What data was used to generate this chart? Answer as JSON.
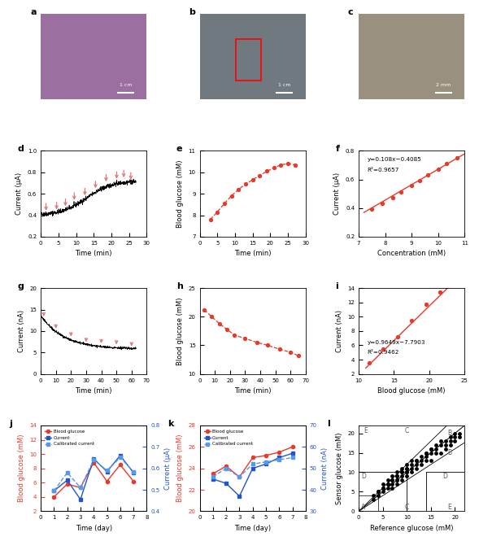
{
  "panel_d": {
    "xlabel": "Time (min)",
    "ylabel": "Current (μA)",
    "xlim": [
      0,
      30
    ],
    "ylim": [
      0.2,
      1.0
    ],
    "yticks": [
      0.2,
      0.4,
      0.6,
      0.8,
      1.0
    ],
    "xticks": [
      0,
      5,
      10,
      15,
      20,
      25,
      30
    ],
    "arrow_times": [
      1.5,
      4.5,
      7.0,
      9.5,
      12.5,
      15.5,
      18.5,
      21.5,
      23.5,
      25.5
    ]
  },
  "panel_e": {
    "xlabel": "Time (min)",
    "ylabel": "Blood glucose (mM)",
    "xlim": [
      0,
      30
    ],
    "ylim": [
      7,
      11
    ],
    "yticks": [
      7,
      8,
      9,
      10,
      11
    ],
    "xticks": [
      0,
      5,
      10,
      15,
      20,
      25,
      30
    ],
    "x": [
      3,
      5,
      7,
      9,
      11,
      13,
      15,
      17,
      19,
      21,
      23,
      25,
      27
    ],
    "y": [
      7.8,
      8.15,
      8.55,
      8.9,
      9.2,
      9.45,
      9.65,
      9.85,
      10.05,
      10.2,
      10.35,
      10.4,
      10.35
    ]
  },
  "panel_f": {
    "xlabel": "Concentration (mM)",
    "ylabel": "Current (μA)",
    "xlim": [
      7,
      11
    ],
    "ylim": [
      0.2,
      0.8
    ],
    "yticks": [
      0.2,
      0.4,
      0.6,
      0.8
    ],
    "xticks": [
      7,
      8,
      9,
      10,
      11
    ],
    "x": [
      7.5,
      7.9,
      8.3,
      8.6,
      9.0,
      9.3,
      9.6,
      10.0,
      10.3,
      10.7
    ],
    "y": [
      0.39,
      0.43,
      0.47,
      0.51,
      0.56,
      0.59,
      0.63,
      0.67,
      0.71,
      0.75
    ],
    "eq": "y=0.108x−0.4085",
    "r2": "R²=0.9657",
    "fit_slope": 0.108,
    "fit_intercept": -0.4085,
    "fit_x": [
      7.2,
      11.0
    ]
  },
  "panel_g": {
    "xlabel": "Time (min)",
    "ylabel": "Current (nA)",
    "xlim": [
      0,
      70
    ],
    "ylim": [
      0,
      20
    ],
    "yticks": [
      0,
      5,
      10,
      15,
      20
    ],
    "xticks": [
      0,
      10,
      20,
      30,
      40,
      50,
      60,
      70
    ],
    "arrow_times": [
      2,
      10,
      20,
      30,
      40,
      50,
      60
    ]
  },
  "panel_h": {
    "xlabel": "Time (min)",
    "ylabel": "Blood glucose (mM)",
    "xlim": [
      0,
      70
    ],
    "ylim": [
      10,
      25
    ],
    "yticks": [
      10,
      15,
      20,
      25
    ],
    "xticks": [
      0,
      10,
      20,
      30,
      40,
      50,
      60,
      70
    ],
    "x": [
      3,
      8,
      13,
      18,
      23,
      30,
      38,
      45,
      53,
      60,
      65
    ],
    "y": [
      21.2,
      20.0,
      18.8,
      17.8,
      16.8,
      16.2,
      15.5,
      15.0,
      14.3,
      13.8,
      13.2
    ]
  },
  "panel_i": {
    "xlabel": "Blood glucose (mM)",
    "ylabel": "Current (nA)",
    "xlim": [
      10,
      25
    ],
    "ylim": [
      2,
      14
    ],
    "yticks": [
      2,
      4,
      6,
      8,
      10,
      12,
      14
    ],
    "xticks": [
      10,
      15,
      20,
      25
    ],
    "x": [
      11.5,
      13.5,
      15.5,
      17.5,
      19.5,
      21.5
    ],
    "y": [
      3.5,
      5.5,
      7.2,
      9.5,
      11.8,
      13.5
    ],
    "eq": "y=0.9649x−7.7903",
    "r2": "R²=0.9462",
    "fit_slope": 0.9649,
    "fit_intercept": -7.7903,
    "fit_x": [
      11.0,
      23.5
    ]
  },
  "panel_j": {
    "xlabel": "Time (day)",
    "ylabel_left": "Blood glucose (mM)",
    "ylabel_right": "Current (μA)",
    "xlim": [
      0,
      8
    ],
    "ylim_left": [
      2,
      14
    ],
    "ylim_right": [
      0.4,
      0.8
    ],
    "xticks": [
      0,
      1,
      2,
      3,
      4,
      5,
      6,
      7,
      8
    ],
    "yticks_left": [
      2,
      4,
      6,
      8,
      10,
      12,
      14
    ],
    "yticks_right": [
      0.4,
      0.5,
      0.6,
      0.7,
      0.8
    ],
    "blood_glucose_x": [
      1,
      2,
      3,
      4,
      5,
      6,
      7
    ],
    "blood_glucose_y": [
      4.0,
      5.8,
      5.3,
      8.8,
      6.2,
      8.5,
      6.2
    ],
    "current_x": [
      1,
      2,
      3,
      4,
      5,
      6,
      7
    ],
    "current_y": [
      0.495,
      0.545,
      0.455,
      0.645,
      0.585,
      0.66,
      0.58
    ],
    "calibrated_x": [
      1,
      2,
      3,
      4,
      5,
      6,
      7
    ],
    "calibrated_y": [
      0.495,
      0.58,
      0.51,
      0.64,
      0.59,
      0.65,
      0.585
    ]
  },
  "panel_k": {
    "xlabel": "Time (day)",
    "ylabel_left": "Blood glucose (mM)",
    "ylabel_right": "Current (nA)",
    "xlim": [
      0,
      8
    ],
    "ylim_left": [
      20,
      28
    ],
    "ylim_right": [
      30,
      70
    ],
    "xticks": [
      0,
      1,
      2,
      3,
      4,
      5,
      6,
      7,
      8
    ],
    "yticks_left": [
      20,
      22,
      24,
      26,
      28
    ],
    "yticks_right": [
      30,
      40,
      50,
      60,
      70
    ],
    "blood_glucose_x": [
      1,
      2,
      3,
      4,
      5,
      6,
      7
    ],
    "blood_glucose_y": [
      23.5,
      24.2,
      23.2,
      25.0,
      25.2,
      25.5,
      26.0
    ],
    "current_x": [
      1,
      2,
      3,
      4,
      5,
      6,
      7
    ],
    "current_y": [
      45,
      43,
      37,
      50,
      52,
      55,
      57
    ],
    "calibrated_x": [
      1,
      2,
      3,
      4,
      5,
      6,
      7
    ],
    "calibrated_y": [
      46,
      50,
      46,
      52,
      53,
      54,
      55
    ]
  },
  "panel_l": {
    "xlabel": "Reference glucose (mM)",
    "ylabel": "Sensor glucose (mM)",
    "xlim": [
      0,
      22
    ],
    "ylim": [
      0,
      22
    ],
    "xticks": [
      0,
      5,
      10,
      15,
      20
    ],
    "yticks": [
      0,
      5,
      10,
      15,
      20
    ],
    "scatter_x": [
      3,
      3,
      4,
      4,
      4,
      5,
      5,
      5,
      5,
      6,
      6,
      6,
      6,
      7,
      7,
      7,
      7,
      7,
      8,
      8,
      8,
      8,
      8,
      8,
      9,
      9,
      9,
      9,
      9,
      10,
      10,
      10,
      10,
      10,
      10,
      11,
      11,
      11,
      11,
      12,
      12,
      12,
      12,
      13,
      13,
      13,
      14,
      14,
      14,
      14,
      15,
      15,
      15,
      15,
      16,
      16,
      16,
      17,
      17,
      17,
      18,
      18,
      18,
      19,
      19,
      19,
      20,
      20,
      20,
      21,
      21
    ],
    "scatter_y": [
      3,
      4,
      4,
      5,
      5,
      5,
      6,
      6,
      7,
      6,
      7,
      7,
      8,
      6,
      7,
      8,
      8,
      9,
      7,
      8,
      8,
      9,
      9,
      10,
      8,
      9,
      10,
      10,
      11,
      9,
      10,
      10,
      11,
      11,
      12,
      10,
      11,
      12,
      13,
      11,
      12,
      13,
      13,
      12,
      13,
      14,
      13,
      14,
      15,
      15,
      13,
      15,
      16,
      16,
      15,
      16,
      17,
      15,
      17,
      18,
      16,
      17,
      18,
      17,
      18,
      19,
      18,
      19,
      20,
      19,
      20
    ]
  },
  "colors": {
    "red": "#e8392a",
    "pink_arrow": "#e07878",
    "blue": "#2255cc",
    "light_blue": "#5599ee",
    "black": "#000000"
  },
  "photo_a_bg": "#9b6fa0",
  "photo_b_bg": "#707880",
  "photo_c_bg": "#9a9080"
}
